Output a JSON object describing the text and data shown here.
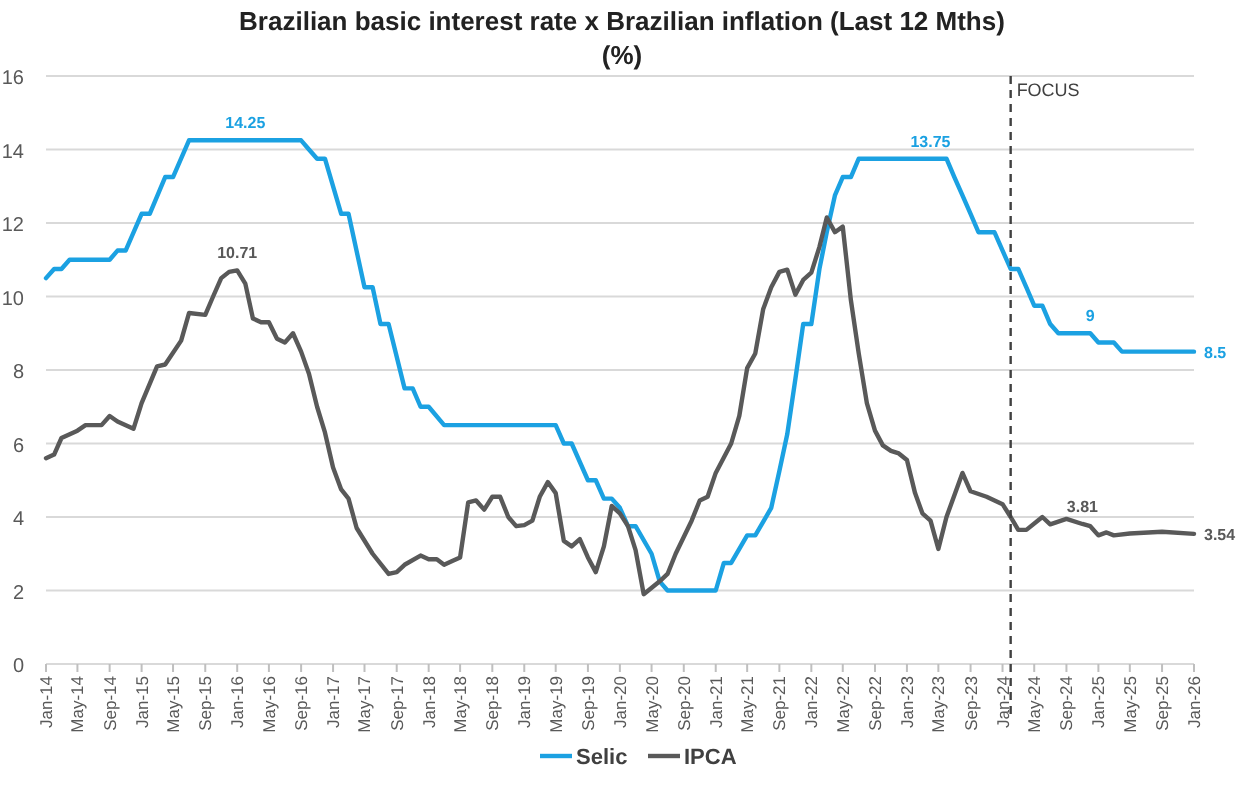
{
  "chart_data": {
    "type": "line",
    "title": "Brazilian basic interest rate x Brazilian inflation (Last 12 Mths)",
    "subtitle": "(%)",
    "series": [
      {
        "name": "Selic",
        "color": "#1ba1e2",
        "x": [
          "2014-01",
          "2014-02",
          "2014-03",
          "2014-04",
          "2014-09",
          "2014-10",
          "2014-11",
          "2015-01",
          "2015-02",
          "2015-04",
          "2015-05",
          "2015-07",
          "2016-09",
          "2016-10",
          "2016-11",
          "2016-12",
          "2017-02",
          "2017-03",
          "2017-05",
          "2017-06",
          "2017-07",
          "2017-08",
          "2017-10",
          "2017-11",
          "2017-12",
          "2018-01",
          "2018-03",
          "2019-05",
          "2019-06",
          "2019-07",
          "2019-09",
          "2019-10",
          "2019-11",
          "2019-12",
          "2020-01",
          "2020-02",
          "2020-03",
          "2020-05",
          "2020-06",
          "2020-07",
          "2021-01",
          "2021-02",
          "2021-03",
          "2021-05",
          "2021-06",
          "2021-08",
          "2021-09",
          "2021-10",
          "2021-11",
          "2021-12",
          "2022-01",
          "2022-02",
          "2022-03",
          "2022-04",
          "2022-05",
          "2022-06",
          "2022-07",
          "2023-06",
          "2023-07",
          "2023-08",
          "2023-09",
          "2023-10",
          "2023-12",
          "2024-02",
          "2024-03",
          "2024-04",
          "2024-05",
          "2024-06",
          "2024-07",
          "2024-08",
          "2024-12",
          "2025-01",
          "2025-03",
          "2025-04",
          "2026-01"
        ],
        "values": [
          10.5,
          10.75,
          10.75,
          11,
          11,
          11.25,
          11.25,
          12.25,
          12.25,
          13.25,
          13.25,
          14.25,
          14.25,
          14,
          13.75,
          13.75,
          12.25,
          12.25,
          10.25,
          10.25,
          9.25,
          9.25,
          7.5,
          7.5,
          7,
          7,
          6.5,
          6.5,
          6,
          6,
          5,
          5,
          4.5,
          4.5,
          4.25,
          3.75,
          3.75,
          3,
          2.25,
          2,
          2,
          2.75,
          2.75,
          3.5,
          3.5,
          4.25,
          5.25,
          6.25,
          7.75,
          9.25,
          9.25,
          10.75,
          11.75,
          12.75,
          13.25,
          13.25,
          13.75,
          13.75,
          13.25,
          12.75,
          12.25,
          11.75,
          11.75,
          10.75,
          10.75,
          10.25,
          9.75,
          9.75,
          9.25,
          9,
          9,
          8.75,
          8.75,
          8.5,
          8.5
        ]
      },
      {
        "name": "IPCA",
        "color": "#595959",
        "x": [
          "2014-01",
          "2014-02",
          "2014-03",
          "2014-05",
          "2014-06",
          "2014-08",
          "2014-09",
          "2014-10",
          "2014-12",
          "2015-01",
          "2015-03",
          "2015-04",
          "2015-06",
          "2015-07",
          "2015-09",
          "2015-10",
          "2015-11",
          "2015-12",
          "2016-01",
          "2016-02",
          "2016-03",
          "2016-04",
          "2016-05",
          "2016-06",
          "2016-07",
          "2016-08",
          "2016-09",
          "2016-10",
          "2016-11",
          "2016-12",
          "2017-01",
          "2017-02",
          "2017-03",
          "2017-04",
          "2017-06",
          "2017-08",
          "2017-09",
          "2017-10",
          "2017-12",
          "2018-01",
          "2018-02",
          "2018-03",
          "2018-04",
          "2018-05",
          "2018-06",
          "2018-07",
          "2018-08",
          "2018-09",
          "2018-10",
          "2018-11",
          "2018-12",
          "2019-01",
          "2019-02",
          "2019-03",
          "2019-04",
          "2019-05",
          "2019-06",
          "2019-07",
          "2019-08",
          "2019-09",
          "2019-10",
          "2019-11",
          "2019-12",
          "2020-01",
          "2020-02",
          "2020-03",
          "2020-04",
          "2020-06",
          "2020-07",
          "2020-08",
          "2020-10",
          "2020-11",
          "2020-12",
          "2021-01",
          "2021-03",
          "2021-04",
          "2021-05",
          "2021-06",
          "2021-07",
          "2021-08",
          "2021-09",
          "2021-10",
          "2021-11",
          "2021-12",
          "2022-01",
          "2022-02",
          "2022-03",
          "2022-04",
          "2022-05",
          "2022-06",
          "2022-07",
          "2022-08",
          "2022-09",
          "2022-10",
          "2022-11",
          "2022-12",
          "2023-01",
          "2023-02",
          "2023-03",
          "2023-04",
          "2023-05",
          "2023-06",
          "2023-08",
          "2023-09",
          "2023-11",
          "2024-01",
          "2024-02",
          "2024-03",
          "2024-04",
          "2024-06",
          "2024-07",
          "2024-09",
          "2024-11",
          "2024-12",
          "2025-01",
          "2025-02",
          "2025-03",
          "2025-05",
          "2025-09",
          "2026-01"
        ],
        "values": [
          5.6,
          5.7,
          6.15,
          6.35,
          6.5,
          6.5,
          6.75,
          6.6,
          6.4,
          7.1,
          8.1,
          8.15,
          8.8,
          9.55,
          9.5,
          10.0,
          10.5,
          10.67,
          10.71,
          10.35,
          9.4,
          9.3,
          9.3,
          8.85,
          8.75,
          9.0,
          8.5,
          7.9,
          7.0,
          6.3,
          5.35,
          4.75,
          4.5,
          3.7,
          3.0,
          2.45,
          2.5,
          2.7,
          2.95,
          2.85,
          2.85,
          2.7,
          2.8,
          2.9,
          4.4,
          4.45,
          4.2,
          4.55,
          4.55,
          4.0,
          3.75,
          3.78,
          3.9,
          4.55,
          4.95,
          4.65,
          3.35,
          3.2,
          3.4,
          2.9,
          2.5,
          3.2,
          4.3,
          4.1,
          3.75,
          3.1,
          1.9,
          2.25,
          2.45,
          3.0,
          3.9,
          4.45,
          4.55,
          5.2,
          6.0,
          6.75,
          8.05,
          8.45,
          9.65,
          10.25,
          10.67,
          10.73,
          10.05,
          10.45,
          10.65,
          11.35,
          12.15,
          11.75,
          11.9,
          9.9,
          8.45,
          7.1,
          6.35,
          5.95,
          5.8,
          5.73,
          5.55,
          4.65,
          4.1,
          3.9,
          3.13,
          4.0,
          5.2,
          4.7,
          4.55,
          4.35,
          4.0,
          3.65,
          3.65,
          4.0,
          3.8,
          3.95,
          3.81,
          3.75,
          3.5,
          3.58,
          3.5,
          3.55,
          3.6,
          3.54
        ]
      }
    ],
    "annotations": [
      {
        "text": "14.25",
        "x": "2016-02",
        "y": 14.25
      },
      {
        "text": "10.71",
        "x": "2016-01",
        "y": 10.71
      },
      {
        "text": "13.75",
        "x": "2023-04",
        "y": 13.75
      },
      {
        "text": "9",
        "x": "2024-12",
        "y": 9
      },
      {
        "text": "8.5",
        "x": "2026-01",
        "y": 8.5
      },
      {
        "text": "3.81",
        "x": "2024-11",
        "y": 3.81
      },
      {
        "text": "3.54",
        "x": "2026-01",
        "y": 3.54
      }
    ],
    "ref_lines": [
      {
        "axis": "x",
        "value": "2024-02",
        "label": "FOCUS",
        "color": "#404040",
        "line_style": "dashed"
      }
    ],
    "xlim": [
      "2014-01",
      "2026-01"
    ],
    "xticks": [
      {
        "value": "2014-01",
        "label": "Jan-14"
      },
      {
        "value": "2014-05",
        "label": "May-14"
      },
      {
        "value": "2014-09",
        "label": "Sep-14"
      },
      {
        "value": "2015-01",
        "label": "Jan-15"
      },
      {
        "value": "2015-05",
        "label": "May-15"
      },
      {
        "value": "2015-09",
        "label": "Sep-15"
      },
      {
        "value": "2016-01",
        "label": "Jan-16"
      },
      {
        "value": "2016-05",
        "label": "May-16"
      },
      {
        "value": "2016-09",
        "label": "Sep-16"
      },
      {
        "value": "2017-01",
        "label": "Jan-17"
      },
      {
        "value": "2017-05",
        "label": "May-17"
      },
      {
        "value": "2017-09",
        "label": "Sep-17"
      },
      {
        "value": "2018-01",
        "label": "Jan-18"
      },
      {
        "value": "2018-05",
        "label": "May-18"
      },
      {
        "value": "2018-09",
        "label": "Sep-18"
      },
      {
        "value": "2019-01",
        "label": "Jan-19"
      },
      {
        "value": "2019-05",
        "label": "May-19"
      },
      {
        "value": "2019-09",
        "label": "Sep-19"
      },
      {
        "value": "2020-01",
        "label": "Jan-20"
      },
      {
        "value": "2020-05",
        "label": "May-20"
      },
      {
        "value": "2020-09",
        "label": "Sep-20"
      },
      {
        "value": "2021-01",
        "label": "Jan-21"
      },
      {
        "value": "2021-05",
        "label": "May-21"
      },
      {
        "value": "2021-09",
        "label": "Sep-21"
      },
      {
        "value": "2022-01",
        "label": "Jan-22"
      },
      {
        "value": "2022-05",
        "label": "May-22"
      },
      {
        "value": "2022-09",
        "label": "Sep-22"
      },
      {
        "value": "2023-01",
        "label": "Jan-23"
      },
      {
        "value": "2023-05",
        "label": "May-23"
      },
      {
        "value": "2023-09",
        "label": "Sep-23"
      },
      {
        "value": "2024-01",
        "label": "Jan-24"
      },
      {
        "value": "2024-05",
        "label": "May-24"
      },
      {
        "value": "2024-09",
        "label": "Sep-24"
      },
      {
        "value": "2025-01",
        "label": "Jan-25"
      },
      {
        "value": "2025-05",
        "label": "May-25"
      },
      {
        "value": "2025-09",
        "label": "Sep-25"
      },
      {
        "value": "2026-01",
        "label": "Jan-26"
      }
    ],
    "ylim": [
      0,
      16
    ],
    "yticks": [
      0,
      2,
      4,
      6,
      8,
      10,
      12,
      14,
      16
    ],
    "grid": "y",
    "legend": "bottom",
    "line_style": "solid",
    "marker": "none"
  }
}
